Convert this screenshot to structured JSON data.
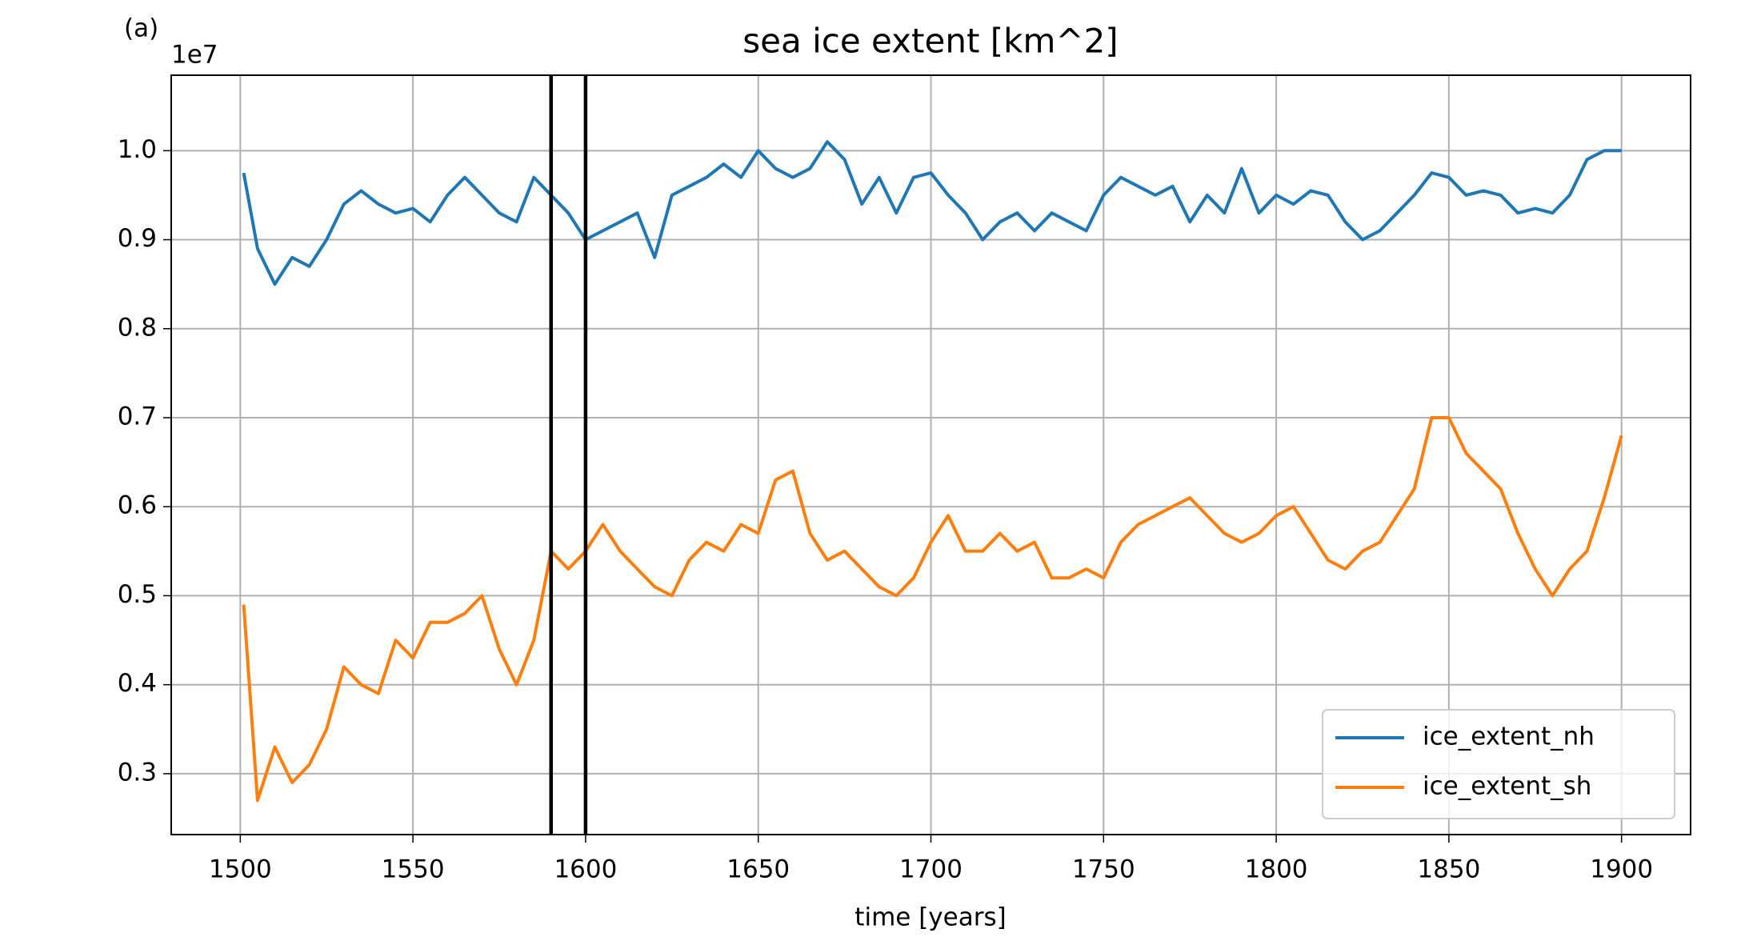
{
  "chart_data": {
    "type": "line",
    "title": "sea ice extent [km^2]",
    "xlabel": "time [years]",
    "annotation": "(a)",
    "offset_text": "1e7",
    "x": [
      1501,
      1505,
      1510,
      1515,
      1520,
      1525,
      1530,
      1535,
      1540,
      1545,
      1550,
      1555,
      1560,
      1565,
      1570,
      1575,
      1580,
      1585,
      1590,
      1595,
      1600,
      1605,
      1610,
      1615,
      1620,
      1625,
      1630,
      1635,
      1640,
      1645,
      1650,
      1655,
      1660,
      1665,
      1670,
      1675,
      1680,
      1685,
      1690,
      1695,
      1700,
      1705,
      1710,
      1715,
      1720,
      1725,
      1730,
      1735,
      1740,
      1745,
      1750,
      1755,
      1760,
      1765,
      1770,
      1775,
      1780,
      1785,
      1790,
      1795,
      1800,
      1805,
      1810,
      1815,
      1820,
      1825,
      1830,
      1835,
      1840,
      1845,
      1850,
      1855,
      1860,
      1865,
      1870,
      1875,
      1880,
      1885,
      1890,
      1895,
      1900
    ],
    "series": [
      {
        "name": "ice_extent_nh",
        "color": "#1f77b4",
        "values": [
          0.975,
          0.89,
          0.85,
          0.88,
          0.87,
          0.9,
          0.94,
          0.955,
          0.94,
          0.93,
          0.935,
          0.92,
          0.95,
          0.97,
          0.95,
          0.93,
          0.92,
          0.97,
          0.95,
          0.93,
          0.9,
          0.91,
          0.92,
          0.93,
          0.88,
          0.95,
          0.96,
          0.97,
          0.985,
          0.97,
          1.0,
          0.98,
          0.97,
          0.98,
          1.01,
          0.99,
          0.94,
          0.97,
          0.93,
          0.97,
          0.975,
          0.95,
          0.93,
          0.9,
          0.92,
          0.93,
          0.91,
          0.93,
          0.92,
          0.91,
          0.95,
          0.97,
          0.96,
          0.95,
          0.96,
          0.92,
          0.95,
          0.93,
          0.98,
          0.93,
          0.95,
          0.94,
          0.955,
          0.95,
          0.92,
          0.9,
          0.91,
          0.93,
          0.95,
          0.975,
          0.97,
          0.95,
          0.955,
          0.95,
          0.93,
          0.935,
          0.93,
          0.95,
          0.99,
          1.0,
          1.0
        ]
      },
      {
        "name": "ice_extent_sh",
        "color": "#ff7f0e",
        "values": [
          0.49,
          0.27,
          0.33,
          0.29,
          0.31,
          0.35,
          0.42,
          0.4,
          0.39,
          0.45,
          0.43,
          0.47,
          0.47,
          0.48,
          0.5,
          0.44,
          0.4,
          0.45,
          0.55,
          0.53,
          0.55,
          0.58,
          0.55,
          0.53,
          0.51,
          0.5,
          0.54,
          0.56,
          0.55,
          0.58,
          0.57,
          0.63,
          0.64,
          0.57,
          0.54,
          0.55,
          0.53,
          0.51,
          0.5,
          0.52,
          0.56,
          0.59,
          0.55,
          0.55,
          0.57,
          0.55,
          0.56,
          0.52,
          0.52,
          0.53,
          0.52,
          0.56,
          0.58,
          0.59,
          0.6,
          0.61,
          0.59,
          0.57,
          0.56,
          0.57,
          0.59,
          0.6,
          0.57,
          0.54,
          0.53,
          0.55,
          0.56,
          0.59,
          0.62,
          0.7,
          0.7,
          0.66,
          0.64,
          0.62,
          0.57,
          0.53,
          0.5,
          0.53,
          0.55,
          0.61,
          0.68
        ]
      }
    ],
    "vlines": [
      1590,
      1600
    ],
    "vline_color": "#000000",
    "xlim": [
      1480,
      1920
    ],
    "xticks": [
      1500,
      1550,
      1600,
      1650,
      1700,
      1750,
      1800,
      1850,
      1900
    ],
    "ylim": [
      0.2316,
      1.0848
    ],
    "yticks": [
      0.3,
      0.4,
      0.5,
      0.6,
      0.7,
      0.8,
      0.9,
      {
        "value": 1.0,
        "label": "1.0"
      }
    ],
    "grid": true,
    "legend": "lower right"
  }
}
